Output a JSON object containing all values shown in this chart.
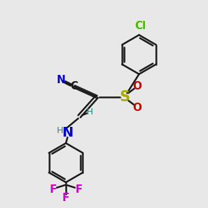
{
  "bg_color": "#e8e8e8",
  "bond_color": "#1a1a1a",
  "bond_width": 1.8,
  "atom_colors": {
    "N_cyano": "#0000cc",
    "N_amine": "#0000cc",
    "S": "#aaaa00",
    "O": "#cc0000",
    "Cl": "#44bb00",
    "F": "#cc00cc",
    "H": "#2a8080",
    "C": "#1a1a1a"
  },
  "font_size_large": 13,
  "font_size_med": 11,
  "font_size_small": 9
}
